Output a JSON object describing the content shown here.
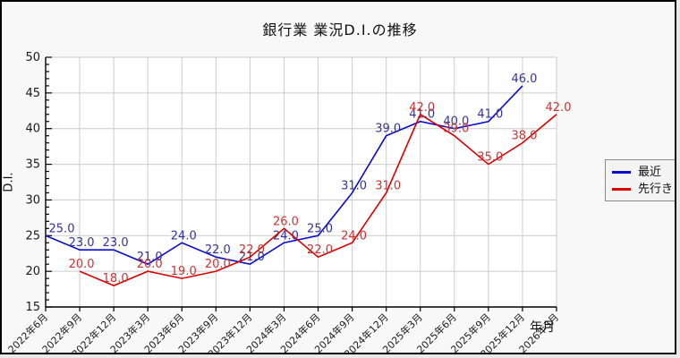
{
  "window": {
    "background": "#f8f8f8",
    "border_color": "#000000"
  },
  "chart_data": {
    "type": "line",
    "title": "銀行業 業況D.I.の推移",
    "xlabel": "年月",
    "ylabel": "D.I.",
    "ylim": [
      15,
      50
    ],
    "ytick_step": 5,
    "ytick_minor_step": 1,
    "grid": true,
    "legend_position": "outside-right-middle",
    "value_labels": true,
    "value_label_decimals": 1,
    "axis_color": "#000000",
    "grid_color": "#cccccc",
    "tick_label_color": "#1a1a1a",
    "categories": [
      "2022年6月",
      "2022年9月",
      "2022年12月",
      "2023年3月",
      "2023年6月",
      "2023年9月",
      "2023年12月",
      "2024年3月",
      "2024年6月",
      "2024年9月",
      "2024年12月",
      "2025年3月",
      "2025年6月",
      "2025年9月",
      "2025年12月",
      "2026年3月"
    ],
    "series": [
      {
        "name": "最近",
        "color": "#0b0bcd",
        "label_color": "#333399",
        "start_index": 0,
        "values": [
          25.0,
          23.0,
          23.0,
          21.0,
          24.0,
          22.0,
          21.0,
          24.0,
          25.0,
          31.0,
          39.0,
          41.0,
          40.0,
          41.0,
          46.0
        ]
      },
      {
        "name": "先行き",
        "color": "#dd0000",
        "label_color": "#cc3333",
        "start_index": 1,
        "values": [
          20.0,
          18.0,
          20.0,
          19.0,
          20.0,
          22.0,
          26.0,
          22.0,
          24.0,
          31.0,
          42.0,
          39.0,
          35.0,
          38.0,
          42.0
        ]
      }
    ]
  }
}
